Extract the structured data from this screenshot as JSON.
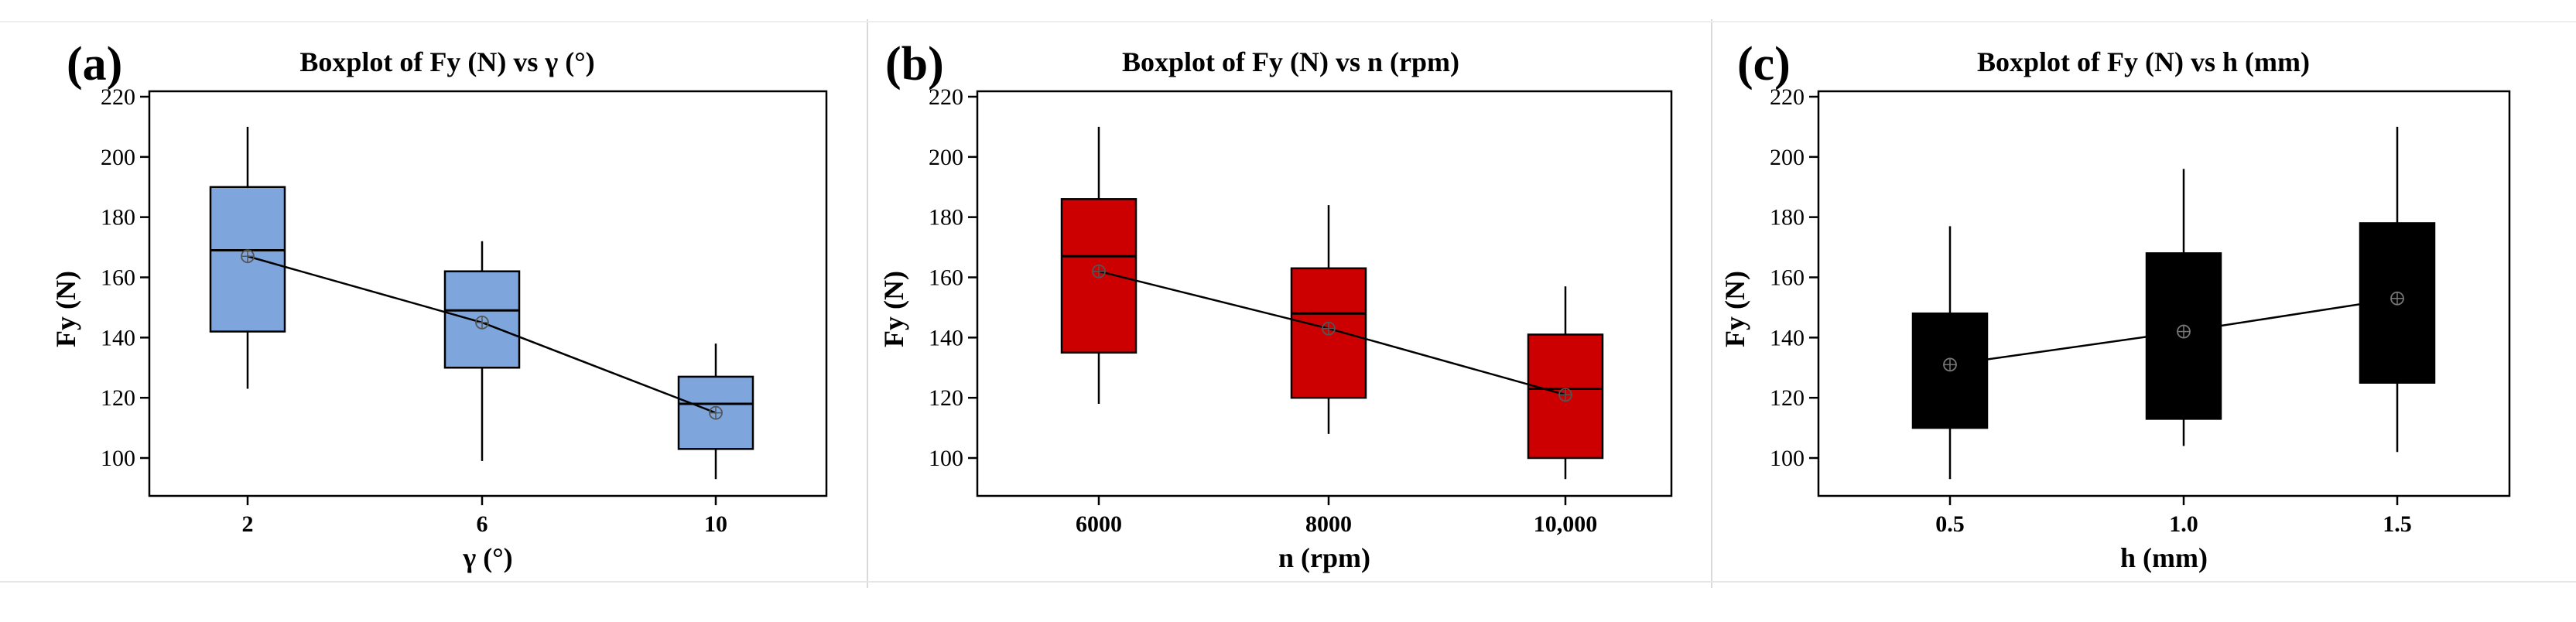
{
  "figure": {
    "panels": [
      "(a)",
      "(b)",
      "(c)"
    ]
  },
  "chart_data": [
    {
      "type": "boxplot",
      "panel": "(a)",
      "title": "Boxplot of Fy (N) vs γ (°)",
      "xlabel": "γ (°)",
      "ylabel": "Fy (N)",
      "ylim": [
        90,
        222
      ],
      "yticks": [
        100,
        120,
        140,
        160,
        180,
        200,
        220
      ],
      "categories": [
        "2",
        "6",
        "10"
      ],
      "boxes": [
        {
          "min": 123,
          "q1": 142,
          "median": 169,
          "q3": 190,
          "max": 210,
          "mean": 167
        },
        {
          "min": 99,
          "q1": 130,
          "median": 149,
          "q3": 162,
          "max": 172,
          "mean": 145
        },
        {
          "min": 93,
          "q1": 103,
          "median": 118,
          "q3": 127,
          "max": 138,
          "mean": 115
        }
      ],
      "box_color": "#7ea6dc",
      "mean_line": true
    },
    {
      "type": "boxplot",
      "panel": "(b)",
      "title": "Boxplot of Fy (N) vs n (rpm)",
      "xlabel": "n (rpm)",
      "ylabel": "Fy (N)",
      "ylim": [
        90,
        222
      ],
      "yticks": [
        100,
        120,
        140,
        160,
        180,
        200,
        220
      ],
      "categories": [
        "6000",
        "8000",
        "10,000"
      ],
      "boxes": [
        {
          "min": 118,
          "q1": 135,
          "median": 167,
          "q3": 186,
          "max": 210,
          "mean": 162
        },
        {
          "min": 108,
          "q1": 120,
          "median": 148,
          "q3": 163,
          "max": 184,
          "mean": 143
        },
        {
          "min": 93,
          "q1": 100,
          "median": 123,
          "q3": 141,
          "max": 157,
          "mean": 121
        }
      ],
      "box_color": "#cc0000",
      "mean_line": true
    },
    {
      "type": "boxplot",
      "panel": "(c)",
      "title": "Boxplot of Fy (N) vs h (mm)",
      "xlabel": "h (mm)",
      "ylabel": "Fy (N)",
      "ylim": [
        90,
        222
      ],
      "yticks": [
        100,
        120,
        140,
        160,
        180,
        200,
        220
      ],
      "categories": [
        "0.5",
        "1.0",
        "1.5"
      ],
      "boxes": [
        {
          "min": 93,
          "q1": 110,
          "median": 131,
          "q3": 148,
          "max": 177,
          "mean": 131
        },
        {
          "min": 104,
          "q1": 113,
          "median": 142,
          "q3": 168,
          "max": 196,
          "mean": 142
        },
        {
          "min": 102,
          "q1": 125,
          "median": 153,
          "q3": 178,
          "max": 210,
          "mean": 153
        }
      ],
      "box_color": "#000000",
      "mean_line": true
    }
  ]
}
